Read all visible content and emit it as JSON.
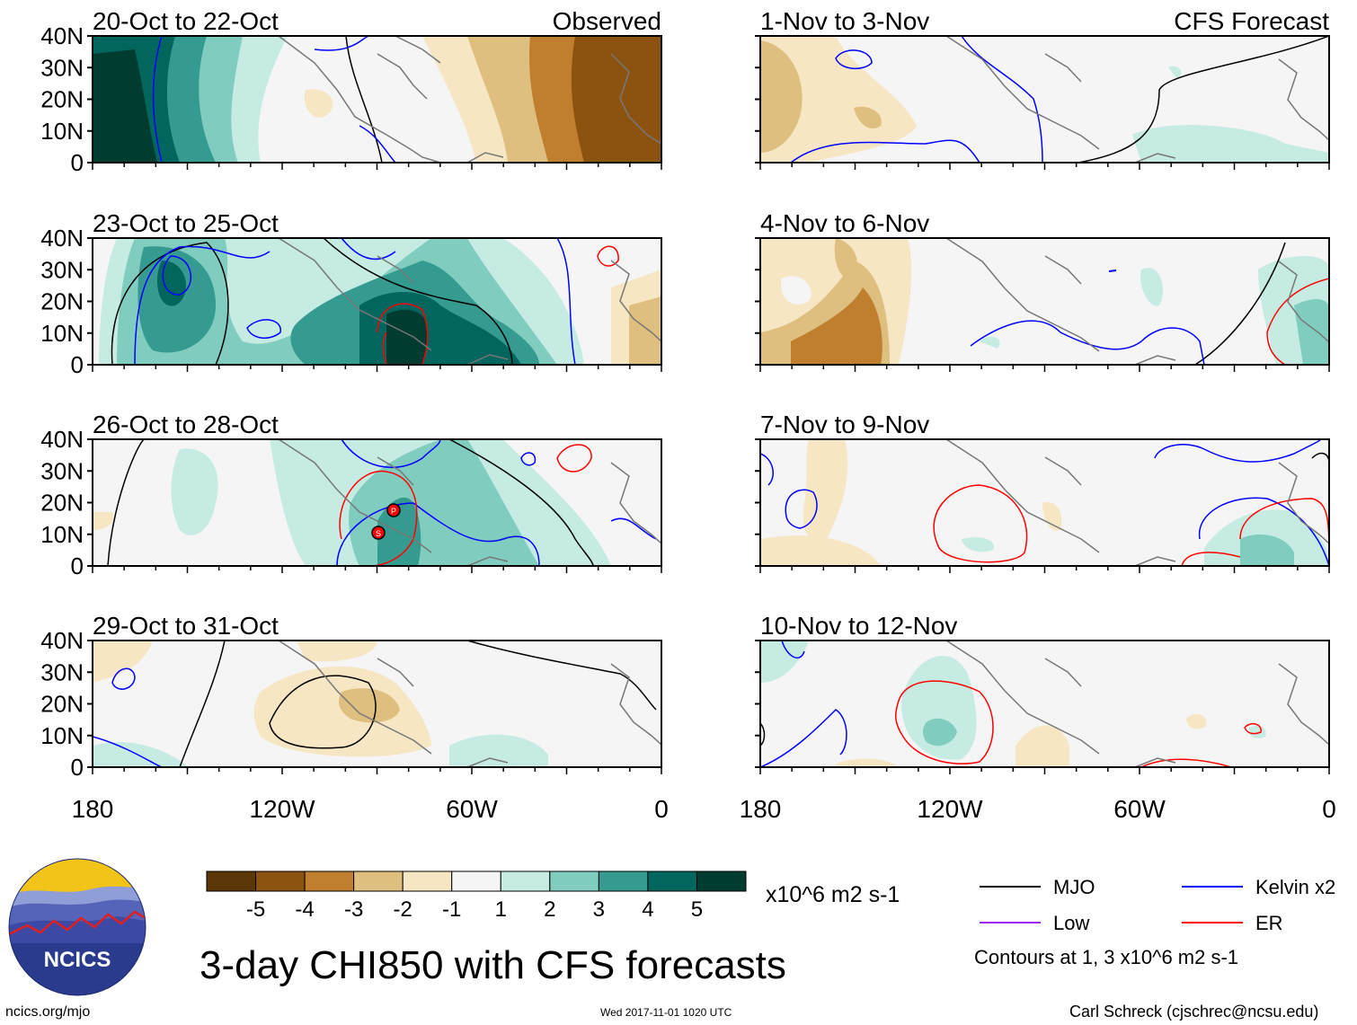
{
  "title": "3-day CHI850 with CFS forecasts",
  "units": "x10^6 m2 s-1",
  "site": "ncics.org/mjo",
  "timestamp": "Wed 2017-11-01 1020 UTC",
  "author": "Carl Schreck (cjschrec@ncsu.edu)",
  "logo_text": "NCICS",
  "contour_note": "Contours at 1, 3 x10^6 m2 s-1",
  "colorbar": {
    "labels": [
      "-5",
      "-4",
      "-3",
      "-2",
      "-1",
      "1",
      "2",
      "3",
      "4",
      "5"
    ],
    "colors": [
      "#5b3609",
      "#8c520f",
      "#bf7f2f",
      "#dfbf7f",
      "#f6e6c3",
      "#f5f5f5",
      "#c6ebe3",
      "#80cdc0",
      "#359a8f",
      "#01665e",
      "#003c30"
    ]
  },
  "legend": [
    {
      "label": "MJO",
      "color": "#000000"
    },
    {
      "label": "Kelvin x2",
      "color": "#0000ff"
    },
    {
      "label": "Low",
      "color": "#a020f0"
    },
    {
      "label": "ER",
      "color": "#ff0000"
    }
  ],
  "chart_data": {
    "type": "heatmap",
    "variable": "CHI850 anomaly",
    "xticks": [
      "180",
      "120W",
      "60W",
      "0"
    ],
    "yticks": [
      "0",
      "10N",
      "20N",
      "30N",
      "40N"
    ],
    "xlim_lon": [
      -180,
      0
    ],
    "ylim_lat": [
      0,
      40
    ],
    "panels": [
      {
        "id": "p1",
        "label": "20-Oct to 22-Oct",
        "tag": "Observed"
      },
      {
        "id": "p2",
        "label": "23-Oct to 25-Oct"
      },
      {
        "id": "p3",
        "label": "26-Oct to 28-Oct"
      },
      {
        "id": "p4",
        "label": "29-Oct to 31-Oct"
      },
      {
        "id": "p5",
        "label": "1-Nov to 3-Nov",
        "tag": "CFS Forecast"
      },
      {
        "id": "p6",
        "label": "4-Nov to 6-Nov"
      },
      {
        "id": "p7",
        "label": "7-Nov to 9-Nov"
      },
      {
        "id": "p8",
        "label": "10-Nov to 12-Nov"
      }
    ]
  }
}
